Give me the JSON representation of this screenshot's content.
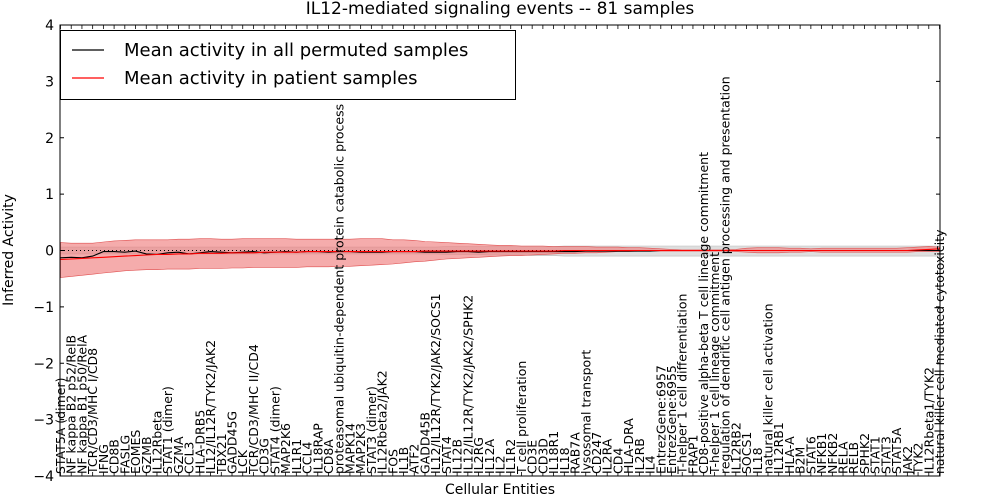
{
  "chart_data": {
    "type": "line",
    "title": "IL12-mediated signaling events -- 81 samples",
    "xlabel": "Cellular Entities",
    "ylabel": "Inferred Activity",
    "ylim": [
      -4,
      4
    ],
    "yticks": [
      -4,
      -3,
      -2,
      -1,
      0,
      1,
      2,
      3,
      4
    ],
    "ytick_labels": [
      "−4",
      "−3",
      "−2",
      "−1",
      "0",
      "1",
      "2",
      "3",
      "4"
    ],
    "legend_position": "top-left",
    "reference_line": 0,
    "categories": [
      "STAT5A (dimer)",
      "NF kappa B2 p52/RelB",
      "NF kappa B1 p50/RelA",
      "TCR/CD3/MHC I/CD8",
      "IFNG",
      "CD8B",
      "FASLG",
      "EOMES",
      "GZMB",
      "IL12Rbeta",
      "STAT1 (dimer)",
      "GZMA",
      "CCL3",
      "HLA-DRB5",
      "IL12/IL12R/TYK2/JAK2",
      "TBX21",
      "GADD45G",
      "LCK",
      "TCR/CD3/MHC II/CD4",
      "CD3G",
      "STAT4 (dimer)",
      "MAP2K6",
      "IL1R1",
      "CCL4",
      "IL18RAP",
      "CD8A",
      "proteasomal ubiquitin-dependent protein catabolic process",
      "MAPK14",
      "MAP2K3",
      "STAT3 (dimer)",
      "IL12Rbeta2/JAK2",
      "FOS",
      "IL1B",
      "ATF2",
      "GADD45B",
      "IL12/IL12R/TYK2/JAK2/SOCS1",
      "STAT4",
      "IL12B",
      "IL12/IL12R/TYK2/JAK2/SPHK2",
      "IL2RG",
      "IL12A",
      "IL2",
      "IL1R2",
      "T cell proliferation",
      "CD3E",
      "CD3D",
      "IL18R1",
      "IL18",
      "RAB7A",
      "lysosomal transport",
      "CD247",
      "IL2RA",
      "CD4",
      "HLA-DRA",
      "IL2RB",
      "IL4",
      "EntrezGene:6957",
      "EntrezGene:6955",
      "T-helper 1 cell differentiation",
      "FRAP1",
      "CD8-positive alpha-beta T cell lineage commitment",
      "T-helper 1 cell lineage commitment",
      "regulation of dendritic cell antigen processing and presentation",
      "IL12RB2",
      "SOCS1",
      "IL18",
      "natural killer cell activation",
      "IL12RB1",
      "HLA-A",
      "B2M",
      "STAT6",
      "NFKB1",
      "NFKB2",
      "RELA",
      "RELB",
      "SPHK2",
      "STAT1",
      "STAT3",
      "STAT5A",
      "JAK2",
      "TYK2",
      "IL12Rbeta1/TYK2",
      "natural killer cell mediated cytotoxicity"
    ],
    "series": [
      {
        "name": "Mean activity in all permuted samples",
        "color": "#000000",
        "values": [
          -0.13,
          -0.12,
          -0.13,
          -0.1,
          -0.02,
          -0.02,
          -0.03,
          -0.01,
          -0.06,
          -0.07,
          -0.04,
          -0.03,
          -0.06,
          -0.04,
          -0.02,
          -0.03,
          -0.04,
          -0.03,
          -0.02,
          -0.04,
          -0.03,
          -0.02,
          -0.03,
          -0.02,
          -0.02,
          -0.03,
          -0.02,
          -0.02,
          -0.03,
          -0.03,
          -0.03,
          -0.02,
          -0.02,
          -0.02,
          -0.03,
          -0.03,
          -0.03,
          -0.02,
          -0.02,
          -0.03,
          -0.02,
          -0.02,
          -0.02,
          -0.02,
          -0.02,
          -0.02,
          -0.02,
          -0.02,
          -0.02,
          -0.01,
          -0.01,
          -0.01,
          -0.01,
          -0.01,
          -0.01,
          -0.01,
          0,
          0,
          0,
          0,
          0,
          0,
          0,
          0,
          0,
          0,
          0,
          0,
          0,
          0,
          0,
          0,
          0,
          0,
          0,
          0,
          0,
          0,
          0,
          0,
          0,
          0,
          0
        ]
      },
      {
        "name": "Mean activity in patient samples",
        "color": "#ff0000",
        "band_color": "#f08080",
        "values": [
          -0.16,
          -0.15,
          -0.14,
          -0.13,
          -0.12,
          -0.11,
          -0.1,
          -0.09,
          -0.08,
          -0.07,
          -0.07,
          -0.06,
          -0.06,
          -0.05,
          -0.05,
          -0.05,
          -0.04,
          -0.04,
          -0.04,
          -0.03,
          -0.03,
          -0.03,
          -0.03,
          -0.02,
          -0.02,
          -0.02,
          -0.02,
          -0.02,
          -0.02,
          -0.02,
          -0.02,
          -0.02,
          -0.02,
          -0.02,
          -0.01,
          -0.01,
          -0.01,
          -0.01,
          -0.01,
          -0.01,
          -0.01,
          -0.01,
          -0.01,
          -0.01,
          -0.01,
          -0.01,
          -0.01,
          0,
          0,
          0,
          0,
          0,
          0,
          0,
          0,
          0,
          0,
          0,
          0,
          0,
          0,
          0,
          0,
          0,
          0,
          0,
          0,
          0,
          0,
          0,
          0,
          0,
          0,
          0,
          0,
          0,
          0,
          0,
          0,
          0,
          0.01,
          0.02,
          0.03
        ],
        "upper": [
          0.14,
          0.13,
          0.13,
          0.13,
          0.15,
          0.17,
          0.18,
          0.19,
          0.19,
          0.19,
          0.19,
          0.2,
          0.2,
          0.21,
          0.21,
          0.2,
          0.2,
          0.21,
          0.21,
          0.21,
          0.21,
          0.21,
          0.2,
          0.2,
          0.2,
          0.2,
          0.2,
          0.2,
          0.21,
          0.21,
          0.21,
          0.19,
          0.19,
          0.18,
          0.16,
          0.15,
          0.14,
          0.13,
          0.12,
          0.11,
          0.1,
          0.09,
          0.09,
          0.08,
          0.08,
          0.08,
          0.07,
          0.07,
          0.07,
          0.07,
          0.06,
          0.06,
          0.06,
          0.05,
          0.05,
          0.04,
          0.03,
          0.02,
          0.01,
          0.01,
          0.01,
          0.01,
          0.01,
          0.02,
          0.04,
          0.05,
          0.05,
          0.05,
          0.04,
          0.04,
          0.03,
          0.04,
          0.04,
          0.04,
          0.04,
          0.04,
          0.04,
          0.04,
          0.04,
          0.05,
          0.06,
          0.07,
          0.06
        ],
        "lower": [
          -0.48,
          -0.46,
          -0.44,
          -0.42,
          -0.4,
          -0.38,
          -0.36,
          -0.35,
          -0.34,
          -0.34,
          -0.33,
          -0.33,
          -0.33,
          -0.32,
          -0.32,
          -0.32,
          -0.31,
          -0.31,
          -0.3,
          -0.3,
          -0.3,
          -0.3,
          -0.3,
          -0.29,
          -0.29,
          -0.29,
          -0.28,
          -0.28,
          -0.27,
          -0.26,
          -0.25,
          -0.24,
          -0.22,
          -0.2,
          -0.19,
          -0.17,
          -0.15,
          -0.14,
          -0.13,
          -0.12,
          -0.11,
          -0.1,
          -0.09,
          -0.09,
          -0.08,
          -0.07,
          -0.06,
          -0.05,
          -0.05,
          -0.04,
          -0.04,
          -0.03,
          -0.02,
          -0.02,
          -0.01,
          -0.01,
          -0.01,
          -0.01,
          -0.01,
          -0.01,
          -0.01,
          -0.01,
          -0.01,
          -0.02,
          -0.03,
          -0.04,
          -0.04,
          -0.04,
          -0.03,
          -0.03,
          -0.02,
          -0.03,
          -0.03,
          -0.03,
          -0.03,
          -0.03,
          -0.03,
          -0.03,
          -0.03,
          -0.03,
          -0.02,
          -0.02,
          -0.02
        ]
      }
    ],
    "permuted_band": {
      "color": "#d3d3d3",
      "upper": [
        0.06,
        0.06,
        0.06,
        0.06,
        0.06,
        0.06,
        0.06,
        0.06,
        0.06,
        0.06,
        0.06,
        0.06,
        0.06,
        0.06,
        0.06,
        0.06,
        0.06,
        0.06,
        0.06,
        0.06,
        0.06,
        0.06,
        0.06,
        0.06,
        0.06,
        0.06,
        0.06,
        0.06,
        0.06,
        0.06,
        0.06,
        0.06,
        0.06,
        0.06,
        0.06,
        0.06,
        0.07,
        0.07,
        0.07,
        0.07,
        0.07,
        0.07,
        0.07,
        0.07,
        0.07,
        0.07,
        0.07,
        0.08,
        0.08,
        0.08,
        0.08,
        0.08,
        0.08,
        0.08,
        0.08,
        0.08,
        0.08,
        0.08,
        0.08,
        0.08,
        0.08,
        0.08,
        0.08,
        0.08,
        0.08,
        0.08,
        0.08,
        0.08,
        0.08,
        0.08,
        0.08,
        0.08,
        0.08,
        0.08,
        0.08,
        0.08,
        0.08,
        0.08,
        0.08,
        0.08,
        0.08,
        0.08,
        0.08
      ],
      "lower": [
        -0.06,
        -0.06,
        -0.06,
        -0.06,
        -0.06,
        -0.06,
        -0.06,
        -0.06,
        -0.06,
        -0.06,
        -0.06,
        -0.06,
        -0.06,
        -0.06,
        -0.06,
        -0.06,
        -0.06,
        -0.06,
        -0.06,
        -0.06,
        -0.06,
        -0.06,
        -0.06,
        -0.06,
        -0.06,
        -0.06,
        -0.06,
        -0.06,
        -0.06,
        -0.06,
        -0.06,
        -0.06,
        -0.06,
        -0.06,
        -0.06,
        -0.06,
        -0.07,
        -0.07,
        -0.07,
        -0.07,
        -0.08,
        -0.08,
        -0.08,
        -0.08,
        -0.09,
        -0.09,
        -0.09,
        -0.1,
        -0.1,
        -0.1,
        -0.1,
        -0.1,
        -0.1,
        -0.1,
        -0.1,
        -0.1,
        -0.1,
        -0.1,
        -0.1,
        -0.1,
        -0.1,
        -0.1,
        -0.1,
        -0.1,
        -0.1,
        -0.1,
        -0.1,
        -0.1,
        -0.1,
        -0.1,
        -0.1,
        -0.1,
        -0.1,
        -0.1,
        -0.1,
        -0.1,
        -0.1,
        -0.1,
        -0.1,
        -0.1,
        -0.1,
        -0.1,
        -0.1
      ]
    }
  }
}
